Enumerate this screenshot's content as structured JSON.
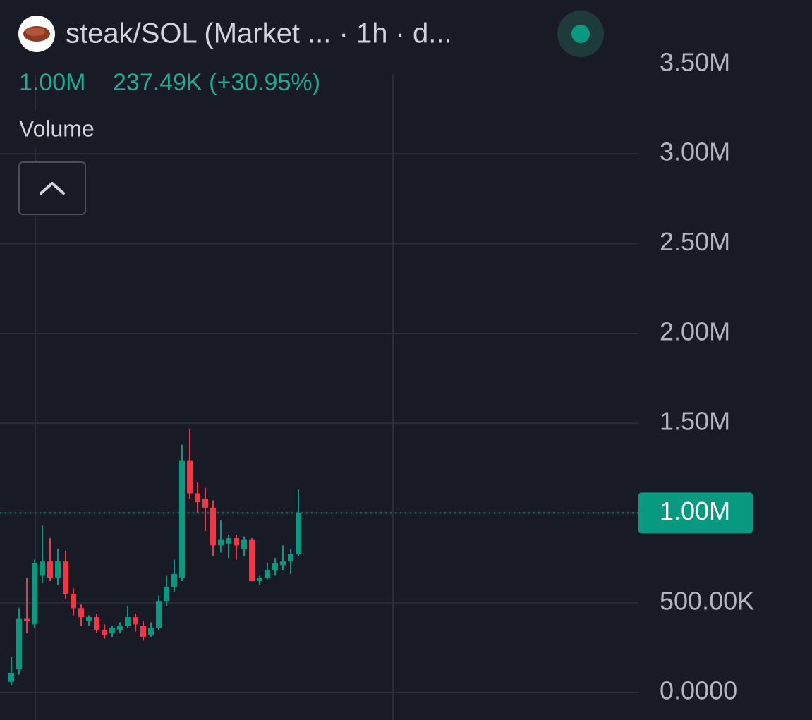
{
  "chart_data": {
    "type": "candlestick",
    "title": "steak/SOL (Market ... · 1h · d...",
    "price_label": "1.00M",
    "change_label": "237.49K (+30.95%)",
    "indicator": "Volume",
    "up_color": "#089981",
    "down_color": "#f23645",
    "open": [
      60000,
      130000,
      410000,
      380000,
      650000,
      730000,
      640000,
      730000,
      550000,
      470000,
      400000,
      420000,
      350000,
      330000,
      350000,
      370000,
      420000,
      370000,
      320000,
      360000,
      510000,
      590000,
      640000,
      1290000,
      1110000,
      1080000,
      1030000,
      820000,
      830000,
      860000,
      800000,
      850000,
      620000,
      640000,
      680000,
      710000,
      730000,
      770000
    ],
    "high": [
      200000,
      470000,
      640000,
      740000,
      930000,
      860000,
      800000,
      790000,
      580000,
      490000,
      430000,
      440000,
      380000,
      370000,
      390000,
      480000,
      440000,
      400000,
      390000,
      540000,
      650000,
      740000,
      1380000,
      1470000,
      1170000,
      1140000,
      1070000,
      960000,
      880000,
      880000,
      870000,
      860000,
      650000,
      720000,
      750000,
      820000,
      800000,
      1130000
    ],
    "low": [
      40000,
      100000,
      330000,
      360000,
      610000,
      620000,
      600000,
      520000,
      430000,
      370000,
      370000,
      330000,
      300000,
      310000,
      330000,
      360000,
      340000,
      290000,
      310000,
      350000,
      480000,
      560000,
      620000,
      1080000,
      1000000,
      900000,
      760000,
      780000,
      750000,
      740000,
      760000,
      620000,
      600000,
      630000,
      650000,
      680000,
      660000,
      760000
    ],
    "close": [
      110000,
      410000,
      400000,
      720000,
      730000,
      640000,
      730000,
      550000,
      470000,
      420000,
      420000,
      350000,
      320000,
      360000,
      370000,
      420000,
      380000,
      310000,
      360000,
      510000,
      590000,
      660000,
      1290000,
      1110000,
      1060000,
      1030000,
      820000,
      850000,
      860000,
      820000,
      850000,
      620000,
      640000,
      680000,
      720000,
      730000,
      770000,
      1000000
    ],
    "ylim": [
      -153000,
      3857000
    ],
    "yticks": [
      {
        "value": 0,
        "label": "0.0000"
      },
      {
        "value": 500000,
        "label": "500.00K"
      },
      {
        "value": 1000000,
        "label": "1.00M"
      },
      {
        "value": 1500000,
        "label": "1.50M"
      },
      {
        "value": 2000000,
        "label": "2.00M"
      },
      {
        "value": 2500000,
        "label": "2.50M"
      },
      {
        "value": 3000000,
        "label": "3.00M"
      },
      {
        "value": 3500000,
        "label": "3.50M"
      }
    ],
    "grid": true,
    "last_price": {
      "value": 1000000,
      "label": "1.00M"
    }
  }
}
